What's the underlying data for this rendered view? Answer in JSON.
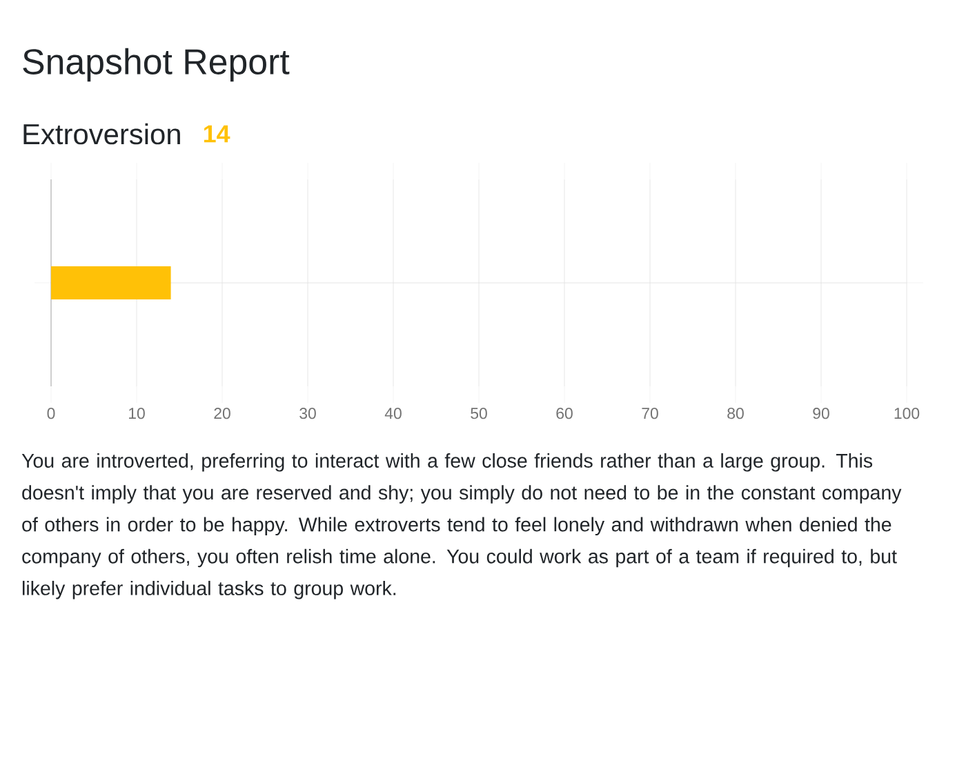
{
  "chart_data": {
    "type": "bar",
    "orientation": "horizontal",
    "title": "Snapshot Report",
    "subtitle": "Extroversion",
    "categories": [
      null
    ],
    "values": [
      14
    ],
    "color": "#ffc107",
    "xlim": [
      0,
      100
    ],
    "xticks": [
      0,
      10,
      20,
      30,
      40,
      50,
      60,
      70,
      80,
      90,
      100
    ],
    "grid": true,
    "annotations": [
      "14",
      "You are introverted, preferring to interact with a few close friends rather than a large group. This doesn't imply that you are reserved and shy; you simply do not need to be in the constant company of others in order to be happy. While extroverts tend to feel lonely and withdrawn when denied the company of others, you often relish time alone. You could work as part of a team if required to, but likely prefer individual tasks to group work."
    ]
  }
}
